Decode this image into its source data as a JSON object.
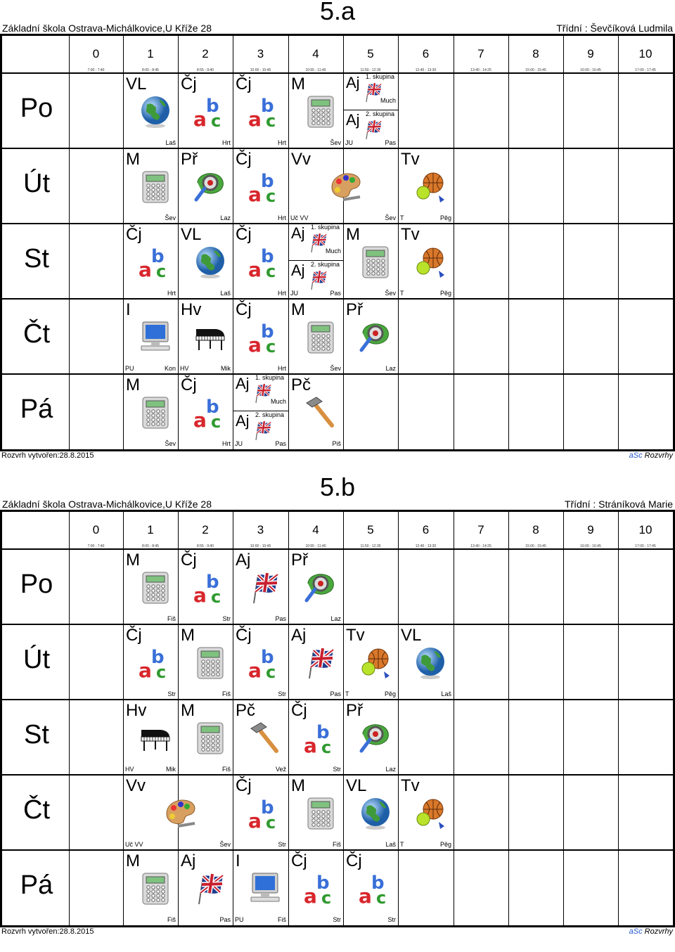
{
  "common": {
    "school": "Základní škola Ostrava-Michálkovice,U Kříže 28",
    "footer_left": "Rozvrh vytvořen:28.8.2015",
    "footer_brand_a": "aSc",
    "footer_brand_b": " Rozvrhy",
    "periods": [
      "0",
      "1",
      "2",
      "3",
      "4",
      "5",
      "6",
      "7",
      "8",
      "9",
      "10"
    ],
    "times": [
      "7:00 - 7:40",
      "8:00 - 8:45",
      "8:55 - 9:40",
      "10:00 - 10:45",
      "10:55 - 11:40",
      "11:50 - 12:35",
      "12:45 - 13:30",
      "13:40 - 14:25",
      "15:00 - 15:45",
      "16:00 - 16:45",
      "17:00 - 17:45"
    ],
    "days": [
      "Po",
      "Út",
      "St",
      "Čt",
      "Pá"
    ]
  },
  "schedules": [
    {
      "class": "5.a",
      "teacher": "Třídní : Ševčíková Ludmila",
      "lessons": [
        {
          "day": 0,
          "p": 1,
          "s": "VL",
          "icon": "globe",
          "tr": "Laš"
        },
        {
          "day": 0,
          "p": 2,
          "s": "Čj",
          "icon": "abc",
          "tr": "Hrt"
        },
        {
          "day": 0,
          "p": 3,
          "s": "Čj",
          "icon": "abc",
          "tr": "Hrt"
        },
        {
          "day": 0,
          "p": 4,
          "s": "M",
          "icon": "calc",
          "tr": "Šev"
        },
        {
          "day": 0,
          "p": 5,
          "split": [
            {
              "s": "Aj",
              "g": "1. skupina",
              "icon": "flag",
              "tr": "Much"
            },
            {
              "s": "Aj",
              "g": "2. skupina",
              "icon": "flag",
              "tl": "JU",
              "tr": "Pas"
            }
          ]
        },
        {
          "day": 1,
          "p": 1,
          "s": "M",
          "icon": "calc",
          "tr": "Šev"
        },
        {
          "day": 1,
          "p": 2,
          "s": "Př",
          "icon": "magnifier",
          "tr": "Laz"
        },
        {
          "day": 1,
          "p": 3,
          "s": "Čj",
          "icon": "abc",
          "tr": "Hrt"
        },
        {
          "day": 1,
          "p": 4,
          "span": 2,
          "s": "Vv",
          "icon": "palette",
          "tl": "Uč VV",
          "tr": "Šev"
        },
        {
          "day": 1,
          "p": 6,
          "s": "Tv",
          "icon": "balls",
          "tl": "T",
          "tr": "Pěg"
        },
        {
          "day": 2,
          "p": 1,
          "s": "Čj",
          "icon": "abc",
          "tr": "Hrt"
        },
        {
          "day": 2,
          "p": 2,
          "s": "VL",
          "icon": "globe",
          "tr": "Laš"
        },
        {
          "day": 2,
          "p": 3,
          "s": "Čj",
          "icon": "abc",
          "tr": "Hrt"
        },
        {
          "day": 2,
          "p": 4,
          "split": [
            {
              "s": "Aj",
              "g": "1. skupina",
              "icon": "flag",
              "tr": "Much"
            },
            {
              "s": "Aj",
              "g": "2. skupina",
              "icon": "flag",
              "tl": "JU",
              "tr": "Pas"
            }
          ]
        },
        {
          "day": 2,
          "p": 5,
          "s": "M",
          "icon": "calc",
          "tr": "Šev"
        },
        {
          "day": 2,
          "p": 6,
          "s": "Tv",
          "icon": "balls",
          "tl": "T",
          "tr": "Pěg"
        },
        {
          "day": 3,
          "p": 1,
          "s": "I",
          "icon": "computer",
          "tl": "PU",
          "tr": "Kon"
        },
        {
          "day": 3,
          "p": 2,
          "s": "Hv",
          "icon": "piano",
          "tl": "HV",
          "tr": "Mik"
        },
        {
          "day": 3,
          "p": 3,
          "s": "Čj",
          "icon": "abc",
          "tr": "Hrt"
        },
        {
          "day": 3,
          "p": 4,
          "s": "M",
          "icon": "calc",
          "tr": "Šev"
        },
        {
          "day": 3,
          "p": 5,
          "s": "Př",
          "icon": "magnifier",
          "tr": "Laz"
        },
        {
          "day": 4,
          "p": 1,
          "s": "M",
          "icon": "calc",
          "tr": "Šev"
        },
        {
          "day": 4,
          "p": 2,
          "s": "Čj",
          "icon": "abc",
          "tr": "Hrt"
        },
        {
          "day": 4,
          "p": 3,
          "split": [
            {
              "s": "Aj",
              "g": "1. skupina",
              "icon": "flag",
              "tr": "Much"
            },
            {
              "s": "Aj",
              "g": "2. skupina",
              "icon": "flag",
              "tl": "JU",
              "tr": "Pas"
            }
          ]
        },
        {
          "day": 4,
          "p": 4,
          "s": "Pč",
          "icon": "hammer",
          "tr": "Piš"
        }
      ]
    },
    {
      "class": "5.b",
      "teacher": "Třídní : Stráníková Marie",
      "lessons": [
        {
          "day": 0,
          "p": 1,
          "s": "M",
          "icon": "calc",
          "tr": "Fiš"
        },
        {
          "day": 0,
          "p": 2,
          "s": "Čj",
          "icon": "abc",
          "tr": "Str"
        },
        {
          "day": 0,
          "p": 3,
          "s": "Aj",
          "icon": "flag",
          "tr": "Pas"
        },
        {
          "day": 0,
          "p": 4,
          "s": "Př",
          "icon": "magnifier",
          "tr": "Laz"
        },
        {
          "day": 1,
          "p": 1,
          "s": "Čj",
          "icon": "abc",
          "tr": "Str"
        },
        {
          "day": 1,
          "p": 2,
          "s": "M",
          "icon": "calc",
          "tr": "Fiš"
        },
        {
          "day": 1,
          "p": 3,
          "s": "Čj",
          "icon": "abc",
          "tr": "Str"
        },
        {
          "day": 1,
          "p": 4,
          "s": "Aj",
          "icon": "flag",
          "tr": "Pas"
        },
        {
          "day": 1,
          "p": 5,
          "s": "Tv",
          "icon": "balls",
          "tl": "T",
          "tr": "Pěg"
        },
        {
          "day": 1,
          "p": 6,
          "s": "VL",
          "icon": "globe",
          "tr": "Laš"
        },
        {
          "day": 2,
          "p": 1,
          "s": "Hv",
          "icon": "piano",
          "tl": "HV",
          "tr": "Mik"
        },
        {
          "day": 2,
          "p": 2,
          "s": "M",
          "icon": "calc",
          "tr": "Fiš"
        },
        {
          "day": 2,
          "p": 3,
          "s": "Pč",
          "icon": "hammer",
          "tr": "Vež"
        },
        {
          "day": 2,
          "p": 4,
          "s": "Čj",
          "icon": "abc",
          "tr": "Str"
        },
        {
          "day": 2,
          "p": 5,
          "s": "Př",
          "icon": "magnifier",
          "tr": "Laz"
        },
        {
          "day": 3,
          "p": 1,
          "span": 2,
          "s": "Vv",
          "icon": "palette",
          "tl": "Uč VV",
          "tr": "Šev"
        },
        {
          "day": 3,
          "p": 3,
          "s": "Čj",
          "icon": "abc",
          "tr": "Str"
        },
        {
          "day": 3,
          "p": 4,
          "s": "M",
          "icon": "calc",
          "tr": "Fiš"
        },
        {
          "day": 3,
          "p": 5,
          "s": "VL",
          "icon": "globe",
          "tr": "Laš"
        },
        {
          "day": 3,
          "p": 6,
          "s": "Tv",
          "icon": "balls",
          "tl": "T",
          "tr": "Pěg"
        },
        {
          "day": 4,
          "p": 1,
          "s": "M",
          "icon": "calc",
          "tr": "Fiš"
        },
        {
          "day": 4,
          "p": 2,
          "s": "Aj",
          "icon": "flag",
          "tr": "Pas"
        },
        {
          "day": 4,
          "p": 3,
          "s": "I",
          "icon": "computer",
          "tl": "PU",
          "tr": "Fiš"
        },
        {
          "day": 4,
          "p": 4,
          "s": "Čj",
          "icon": "abc",
          "tr": "Str"
        },
        {
          "day": 4,
          "p": 5,
          "s": "Čj",
          "icon": "abc",
          "tr": "Str"
        }
      ]
    }
  ]
}
